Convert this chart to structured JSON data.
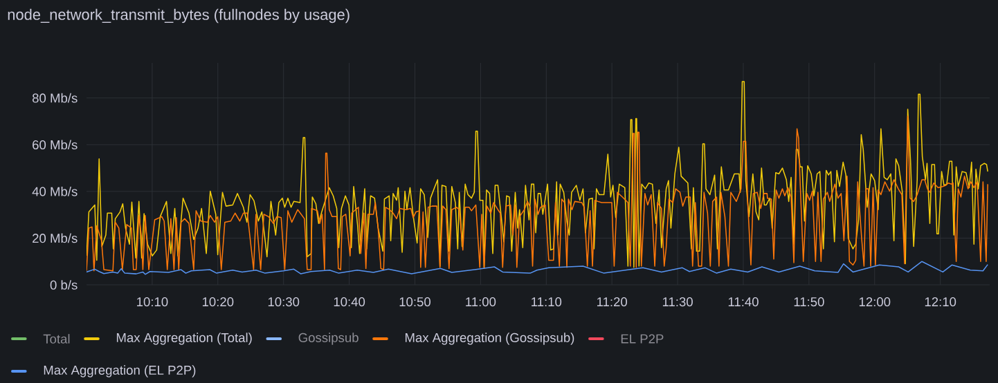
{
  "chart_data": {
    "type": "line",
    "title": "node_network_transmit_bytes (fullnodes by usage)",
    "xlim": [
      10.0,
      12.292
    ],
    "ylim": [
      0,
      95
    ],
    "xticks": [
      {
        "value": 10.1667,
        "label": "10:10"
      },
      {
        "value": 10.3333,
        "label": "10:20"
      },
      {
        "value": 10.5,
        "label": "10:30"
      },
      {
        "value": 10.6667,
        "label": "10:40"
      },
      {
        "value": 10.8333,
        "label": "10:50"
      },
      {
        "value": 11.0,
        "label": "11:00"
      },
      {
        "value": 11.1667,
        "label": "11:10"
      },
      {
        "value": 11.3333,
        "label": "11:20"
      },
      {
        "value": 11.5,
        "label": "11:30"
      },
      {
        "value": 11.6667,
        "label": "11:40"
      },
      {
        "value": 11.8333,
        "label": "11:50"
      },
      {
        "value": 12.0,
        "label": "12:00"
      },
      {
        "value": 12.1667,
        "label": "12:10"
      }
    ],
    "yticks": [
      {
        "value": 0,
        "label": "0 b/s"
      },
      {
        "value": 20,
        "label": "20 Mb/s"
      },
      {
        "value": 40,
        "label": "40 Mb/s"
      },
      {
        "value": 60,
        "label": "60 Mb/s"
      },
      {
        "value": 80,
        "label": "80 Mb/s"
      }
    ],
    "grid": true,
    "legend": "bottom",
    "marker": "none",
    "line_style": "solid",
    "series": [
      {
        "name": "Total",
        "color": "#73bf69"
      },
      {
        "name": "Max Aggregation (Total)",
        "color": "#f2cc0c",
        "x": [
          10.0,
          10.006,
          10.021,
          10.026,
          10.032,
          10.039,
          10.049,
          10.053,
          10.064,
          10.068,
          10.073,
          10.085,
          10.092,
          10.099,
          10.109,
          10.115,
          10.125,
          10.133,
          10.14,
          10.146,
          10.155,
          10.167,
          10.178,
          10.187,
          10.203,
          10.214,
          10.224,
          10.232,
          10.245,
          10.26,
          10.272,
          10.283,
          10.292,
          10.304,
          10.314,
          10.328,
          10.333,
          10.345,
          10.354,
          10.371,
          10.383,
          10.398,
          10.407,
          10.415,
          10.425,
          10.436,
          10.445,
          10.458,
          10.468,
          10.48,
          10.488,
          10.497,
          10.503,
          10.511,
          10.519,
          10.526,
          10.542,
          10.55,
          10.554,
          10.56,
          10.57,
          10.573,
          10.582,
          10.589,
          10.597,
          10.616,
          10.626,
          10.635,
          10.64,
          10.647,
          10.657,
          10.666,
          10.672,
          10.678,
          10.688,
          10.693,
          10.706,
          10.711,
          10.721,
          10.731,
          10.74,
          10.752,
          10.756,
          10.768,
          10.772,
          10.778,
          10.787,
          10.791,
          10.801,
          10.808,
          10.813,
          10.821,
          10.83,
          10.839,
          10.848,
          10.857,
          10.866,
          10.873,
          10.883,
          10.891,
          10.897,
          10.902,
          10.912,
          10.92,
          10.927,
          10.936,
          10.942,
          10.946,
          10.953,
          10.961,
          10.968,
          10.977,
          10.984,
          10.988,
          10.992,
          10.998,
          11.006,
          11.009,
          11.015,
          11.023,
          11.031,
          11.037,
          11.044,
          11.053,
          11.059,
          11.066,
          11.073,
          11.079,
          11.088,
          11.094,
          11.099,
          11.107,
          11.114,
          11.123,
          11.129,
          11.135,
          11.14,
          11.146,
          11.152,
          11.158,
          11.17,
          11.178,
          11.185,
          11.193,
          11.196,
          11.202,
          11.211,
          11.219,
          11.225,
          11.231,
          11.243,
          11.252,
          11.26,
          11.266,
          11.275,
          11.284,
          11.288,
          11.294,
          11.301,
          11.313,
          11.323,
          11.33,
          11.336,
          11.343,
          11.352,
          11.366,
          11.374,
          11.381,
          11.384,
          11.389,
          11.394,
          11.396,
          11.402,
          11.409,
          11.418,
          11.427,
          11.436,
          11.445,
          11.453,
          11.459,
          11.471,
          11.477,
          11.483,
          11.493,
          11.503,
          11.509,
          11.526,
          11.535,
          11.54,
          11.548,
          11.556,
          11.564,
          11.568,
          11.572,
          11.582,
          11.594,
          11.601,
          11.611,
          11.618,
          11.629,
          11.644,
          11.656,
          11.659,
          11.664,
          11.669,
          11.673,
          11.681,
          11.691,
          11.699,
          11.706,
          11.713,
          11.72,
          11.725,
          11.734,
          11.74,
          11.749,
          11.757,
          11.766,
          11.776,
          11.782,
          11.788,
          11.795,
          11.801,
          11.805,
          11.811,
          11.816,
          11.822,
          11.83,
          11.839,
          11.846,
          11.854,
          11.861,
          11.87,
          11.877,
          11.883,
          11.889,
          11.898,
          11.904,
          11.911,
          11.92,
          11.927,
          11.933,
          11.945,
          11.952,
          11.959,
          11.966,
          11.971,
          11.981,
          11.991,
          12.0,
          12.009,
          12.016,
          12.024,
          12.032,
          12.041,
          12.049,
          12.054,
          12.061,
          12.07,
          12.078,
          12.084,
          12.091,
          12.099,
          12.108,
          12.111,
          12.115,
          12.121,
          12.129,
          12.133,
          12.14,
          12.145,
          12.152,
          12.158,
          12.162,
          12.17,
          12.176,
          12.183,
          12.19,
          12.196,
          12.201,
          12.207,
          12.212,
          12.222,
          12.232,
          12.24,
          12.246,
          12.252,
          12.257,
          12.263,
          12.269,
          12.278,
          12.284,
          12.287
        ],
        "values": [
          12.4,
          31.2,
          34.2,
          10.5,
          53.9,
          16.4,
          21.3,
          30.7,
          30.7,
          15.4,
          28.3,
          31.2,
          34.7,
          24.3,
          17.4,
          35.4,
          11.5,
          35.7,
          11.5,
          30.5,
          17.4,
          12.4,
          14.9,
          29.2,
          35.7,
          13.4,
          32.7,
          12.4,
          37.1,
          30.7,
          19.4,
          24.3,
          32.7,
          13.4,
          40.1,
          30.2,
          12.9,
          39.6,
          33.7,
          34.2,
          39.1,
          33.2,
          26.8,
          38.6,
          36.0,
          27.3,
          31.2,
          12.0,
          35.7,
          21.3,
          35.2,
          37.1,
          33.2,
          37.1,
          33.2,
          35.7,
          35.2,
          63.0,
          63.0,
          12.0,
          13.4,
          37.6,
          34.7,
          26.3,
          31.2,
          41.6,
          38.1,
          32.7,
          15.9,
          32.7,
          38.1,
          34.2,
          15.9,
          42.1,
          25.3,
          13.4,
          41.1,
          15.4,
          38.1,
          37.1,
          24.3,
          14.4,
          36.7,
          38.1,
          18.9,
          39.1,
          36.2,
          41.6,
          13.9,
          40.1,
          32.2,
          41.6,
          28.3,
          17.9,
          41.1,
          38.6,
          20.3,
          37.1,
          41.6,
          45.0,
          8.0,
          42.6,
          42.1,
          14.4,
          42.1,
          35.2,
          15.4,
          39.6,
          16.4,
          43.1,
          38.6,
          37.1,
          39.6,
          65.8,
          65.8,
          36.2,
          36.2,
          7.5,
          40.6,
          39.1,
          13.4,
          42.6,
          42.6,
          28.3,
          18.4,
          38.1,
          37.6,
          14.4,
          39.6,
          24.3,
          32.2,
          15.9,
          42.6,
          27.8,
          43.1,
          43.1,
          22.3,
          39.1,
          39.1,
          30.2,
          43.1,
          14.9,
          15.4,
          44.1,
          21.3,
          43.1,
          39.6,
          27.3,
          21.3,
          39.6,
          42.6,
          36.2,
          41.1,
          22.3,
          36.7,
          37.1,
          15.4,
          41.1,
          38.6,
          38.6,
          55.9,
          37.6,
          42.6,
          28.8,
          43.1,
          41.6,
          8.0,
          70.7,
          70.7,
          7.5,
          71.2,
          71.2,
          8.0,
          43.1,
          41.1,
          43.6,
          43.1,
          26.3,
          40.6,
          15.9,
          41.1,
          44.6,
          24.3,
          47.5,
          58.9,
          46.5,
          43.6,
          15.4,
          41.6,
          14.4,
          14.4,
          60.4,
          60.4,
          41.1,
          38.6,
          47.0,
          15.4,
          50.5,
          40.6,
          40.6,
          47.5,
          47.5,
          39.6,
          87.0,
          87.0,
          44.6,
          29.2,
          47.5,
          31.2,
          27.8,
          50.0,
          34.2,
          34.2,
          37.1,
          24.3,
          48.0,
          47.5,
          50.0,
          45.0,
          35.7,
          46.0,
          17.4,
          57.9,
          57.9,
          50.5,
          50.5,
          27.3,
          51.0,
          47.5,
          38.1,
          47.5,
          48.5,
          15.4,
          49.0,
          47.0,
          48.5,
          18.4,
          49.0,
          42.1,
          52.5,
          47.0,
          19.9,
          15.4,
          17.4,
          27.8,
          64.3,
          57.9,
          33.2,
          47.5,
          44.6,
          32.2,
          66.8,
          46.0,
          45.0,
          47.5,
          18.9,
          53.9,
          51.0,
          40.1,
          9.0,
          75.2,
          53.4,
          16.4,
          45.0,
          81.6,
          81.6,
          54.9,
          45.0,
          52.0,
          26.3,
          51.5,
          51.5,
          21.8,
          21.8,
          48.5,
          42.6,
          43.1,
          52.9,
          52.9,
          21.3,
          50.5,
          42.1,
          48.5,
          48.0,
          41.6,
          52.5,
          17.4,
          49.5,
          41.1,
          51.0,
          52.0,
          51.5,
          48.5
        ]
      },
      {
        "name": "Gossipsub",
        "color": "#8ab8ff"
      },
      {
        "name": "Max Aggregation (Gossipsub)",
        "color": "#ff780a",
        "x": [
          10.0,
          10.006,
          10.014,
          10.019,
          10.026,
          10.038,
          10.044,
          10.067,
          10.073,
          10.082,
          10.091,
          10.102,
          10.114,
          10.119,
          10.126,
          10.133,
          10.139,
          10.143,
          10.149,
          10.158,
          10.173,
          10.191,
          10.197,
          10.205,
          10.214,
          10.222,
          10.228,
          10.234,
          10.24,
          10.249,
          10.26,
          10.272,
          10.278,
          10.29,
          10.307,
          10.314,
          10.325,
          10.333,
          10.342,
          10.351,
          10.366,
          10.377,
          10.389,
          10.398,
          10.408,
          10.424,
          10.43,
          10.442,
          10.45,
          10.462,
          10.474,
          10.483,
          10.494,
          10.503,
          10.511,
          10.521,
          10.536,
          10.553,
          10.56,
          10.57,
          10.571,
          10.586,
          10.592,
          10.598,
          10.604,
          10.607,
          10.61,
          10.616,
          10.623,
          10.635,
          10.639,
          10.645,
          10.649,
          10.658,
          10.669,
          10.673,
          10.683,
          10.69,
          10.696,
          10.704,
          10.709,
          10.714,
          10.728,
          10.733,
          10.74,
          10.747,
          10.754,
          10.759,
          10.769,
          10.778,
          10.787,
          10.795,
          10.81,
          10.823,
          10.829,
          10.836,
          10.845,
          10.848,
          10.854,
          10.86,
          10.867,
          10.877,
          10.889,
          10.897,
          10.904,
          10.912,
          10.92,
          10.927,
          10.939,
          10.946,
          10.955,
          10.961,
          10.971,
          10.977,
          10.988,
          10.998,
          11.003,
          11.009,
          11.016,
          11.026,
          11.033,
          11.044,
          11.05,
          11.056,
          11.064,
          11.076,
          11.082,
          11.088,
          11.092,
          11.099,
          11.111,
          11.119,
          11.126,
          11.132,
          11.138,
          11.146,
          11.152,
          11.164,
          11.173,
          11.185,
          11.19,
          11.2,
          11.206,
          11.213,
          11.219,
          11.223,
          11.232,
          11.239,
          11.257,
          11.263,
          11.271,
          11.278,
          11.284,
          11.29,
          11.298,
          11.307,
          11.333,
          11.339,
          11.347,
          11.36,
          11.374,
          11.38,
          11.387,
          11.39,
          11.395,
          11.399,
          11.402,
          11.408,
          11.417,
          11.424,
          11.433,
          11.442,
          11.449,
          11.459,
          11.466,
          11.471,
          11.478,
          11.488,
          11.495,
          11.506,
          11.513,
          11.521,
          11.532,
          11.538,
          11.545,
          11.553,
          11.561,
          11.567,
          11.576,
          11.583,
          11.589,
          11.599,
          11.605,
          11.61,
          11.62,
          11.629,
          11.635,
          11.649,
          11.661,
          11.667,
          11.673,
          11.678,
          11.686,
          11.692,
          11.702,
          11.711,
          11.719,
          11.727,
          11.728,
          11.738,
          11.744,
          11.75,
          11.757,
          11.766,
          11.772,
          11.78,
          11.788,
          11.795,
          11.803,
          11.807,
          11.811,
          11.819,
          11.828,
          11.835,
          11.842,
          11.85,
          11.856,
          11.864,
          11.87,
          11.88,
          11.886,
          11.899,
          11.907,
          11.915,
          11.922,
          11.93,
          11.936,
          11.945,
          11.952,
          11.957,
          11.967,
          11.973,
          11.978,
          11.984,
          11.99,
          11.996,
          12.002,
          12.009,
          12.016,
          12.026,
          12.038,
          12.049,
          12.06,
          12.069,
          12.076,
          12.084,
          12.09,
          12.099,
          12.108,
          12.12,
          12.127,
          12.134,
          12.14,
          12.15,
          12.161,
          12.173,
          12.181,
          12.187,
          12.195,
          12.199,
          12.207,
          12.212,
          12.219,
          12.228,
          12.237,
          12.244,
          12.252,
          12.26,
          12.269,
          12.275,
          12.283,
          12.287
        ],
        "values": [
          6.0,
          24.3,
          24.8,
          6.0,
          25.3,
          18.9,
          6.5,
          6.0,
          26.8,
          24.3,
          6.5,
          25.8,
          24.3,
          6.5,
          6.5,
          29.7,
          21.3,
          6.5,
          29.7,
          6.5,
          27.8,
          29.2,
          27.3,
          6.5,
          28.3,
          6.5,
          28.8,
          6.5,
          26.8,
          28.3,
          26.3,
          6.5,
          31.7,
          27.3,
          26.8,
          29.7,
          26.8,
          29.2,
          6.5,
          26.8,
          27.3,
          30.7,
          27.3,
          30.7,
          30.7,
          6.5,
          30.2,
          6.5,
          30.2,
          29.2,
          26.3,
          29.2,
          28.8,
          6.5,
          31.7,
          26.8,
          32.2,
          28.3,
          6.5,
          6.5,
          32.7,
          31.7,
          26.3,
          30.2,
          6.5,
          56.4,
          56.4,
          32.2,
          29.2,
          29.2,
          7.0,
          6.5,
          29.2,
          30.2,
          12.4,
          30.7,
          32.2,
          33.2,
          13.4,
          30.7,
          7.0,
          30.2,
          30.2,
          35.2,
          24.3,
          7.0,
          6.5,
          33.2,
          32.2,
          30.7,
          28.3,
          32.7,
          32.2,
          32.7,
          28.8,
          31.2,
          31.7,
          7.5,
          31.2,
          7.5,
          33.2,
          33.7,
          33.7,
          7.5,
          33.7,
          32.2,
          7.0,
          32.2,
          33.2,
          32.2,
          14.9,
          33.2,
          33.2,
          31.7,
          34.2,
          7.5,
          30.2,
          7.0,
          33.7,
          30.7,
          35.2,
          32.2,
          30.7,
          7.5,
          33.7,
          34.2,
          21.3,
          34.2,
          7.5,
          29.2,
          32.2,
          35.7,
          33.2,
          8.0,
          36.7,
          30.2,
          33.2,
          34.2,
          10.5,
          10.5,
          35.2,
          8.0,
          36.7,
          35.2,
          7.5,
          36.7,
          32.2,
          35.7,
          35.2,
          33.2,
          8.0,
          31.7,
          8.0,
          36.2,
          35.7,
          35.2,
          35.2,
          8.0,
          39.6,
          37.6,
          35.2,
          8.0,
          64.8,
          64.8,
          7.5,
          65.3,
          65.3,
          8.0,
          39.1,
          34.2,
          38.6,
          8.0,
          35.2,
          32.7,
          8.0,
          15.9,
          36.7,
          35.2,
          41.1,
          39.6,
          33.7,
          37.6,
          37.6,
          8.0,
          35.2,
          8.0,
          8.0,
          39.6,
          30.7,
          8.0,
          35.7,
          37.6,
          8.0,
          39.6,
          29.2,
          8.0,
          39.6,
          35.7,
          41.1,
          61.4,
          61.4,
          35.2,
          8.5,
          39.1,
          39.6,
          32.7,
          39.1,
          39.1,
          37.1,
          36.7,
          11.0,
          40.6,
          37.1,
          41.1,
          38.1,
          41.6,
          37.6,
          9.5,
          66.8,
          62.8,
          43.6,
          10.0,
          39.1,
          36.2,
          40.1,
          10.0,
          39.6,
          10.0,
          36.7,
          39.6,
          35.7,
          43.1,
          37.1,
          39.1,
          18.9,
          46.5,
          10.0,
          8.5,
          10.5,
          44.1,
          19.9,
          8.0,
          41.1,
          41.1,
          8.0,
          41.6,
          8.5,
          40.6,
          38.6,
          44.1,
          40.1,
          45.0,
          41.1,
          38.6,
          9.0,
          72.2,
          37.1,
          35.7,
          38.6,
          45.0,
          45.0,
          41.1,
          39.6,
          43.6,
          41.6,
          42.1,
          42.6,
          43.6,
          43.1,
          43.6,
          10.0,
          41.1,
          37.6,
          46.5,
          41.1,
          44.1,
          41.6,
          44.1,
          10.0,
          44.1,
          10.0,
          43.1
        ]
      },
      {
        "name": "EL P2P",
        "color": "#f2495c"
      },
      {
        "name": "Max Aggregation (EL P2P)",
        "color": "#5794f2",
        "x": [
          10.0,
          10.021,
          10.032,
          10.044,
          10.067,
          10.079,
          10.088,
          10.097,
          10.126,
          10.143,
          10.149,
          10.161,
          10.208,
          10.24,
          10.252,
          10.266,
          10.313,
          10.33,
          10.371,
          10.395,
          10.43,
          10.453,
          10.5,
          10.526,
          10.544,
          10.57,
          10.617,
          10.64,
          10.687,
          10.728,
          10.766,
          10.825,
          10.898,
          10.927,
          10.985,
          11.035,
          11.056,
          11.126,
          11.143,
          11.173,
          11.26,
          11.313,
          11.412,
          11.459,
          11.512,
          11.53,
          11.57,
          11.599,
          11.635,
          11.678,
          11.714,
          11.757,
          11.81,
          11.848,
          11.907,
          11.921,
          11.945,
          12.012,
          12.061,
          12.085,
          12.12,
          12.173,
          12.196,
          12.243,
          12.275,
          12.287
        ],
        "values": [
          5.5,
          6.7,
          5.7,
          4.8,
          5.5,
          5.0,
          6.9,
          5.0,
          4.7,
          5.5,
          4.5,
          5.7,
          5.3,
          6.5,
          5.0,
          6.0,
          6.5,
          5.0,
          6.3,
          5.5,
          6.3,
          5.0,
          6.0,
          6.7,
          4.7,
          5.7,
          6.3,
          5.0,
          6.3,
          5.3,
          6.7,
          4.7,
          7.0,
          5.3,
          6.5,
          7.7,
          5.5,
          5.0,
          6.3,
          7.3,
          8.0,
          5.0,
          7.3,
          5.5,
          7.3,
          5.7,
          7.3,
          5.0,
          6.7,
          5.5,
          7.7,
          5.5,
          8.0,
          6.0,
          5.3,
          9.0,
          5.5,
          8.5,
          7.7,
          5.5,
          10.0,
          5.5,
          8.5,
          6.3,
          6.0,
          8.7
        ]
      }
    ]
  }
}
